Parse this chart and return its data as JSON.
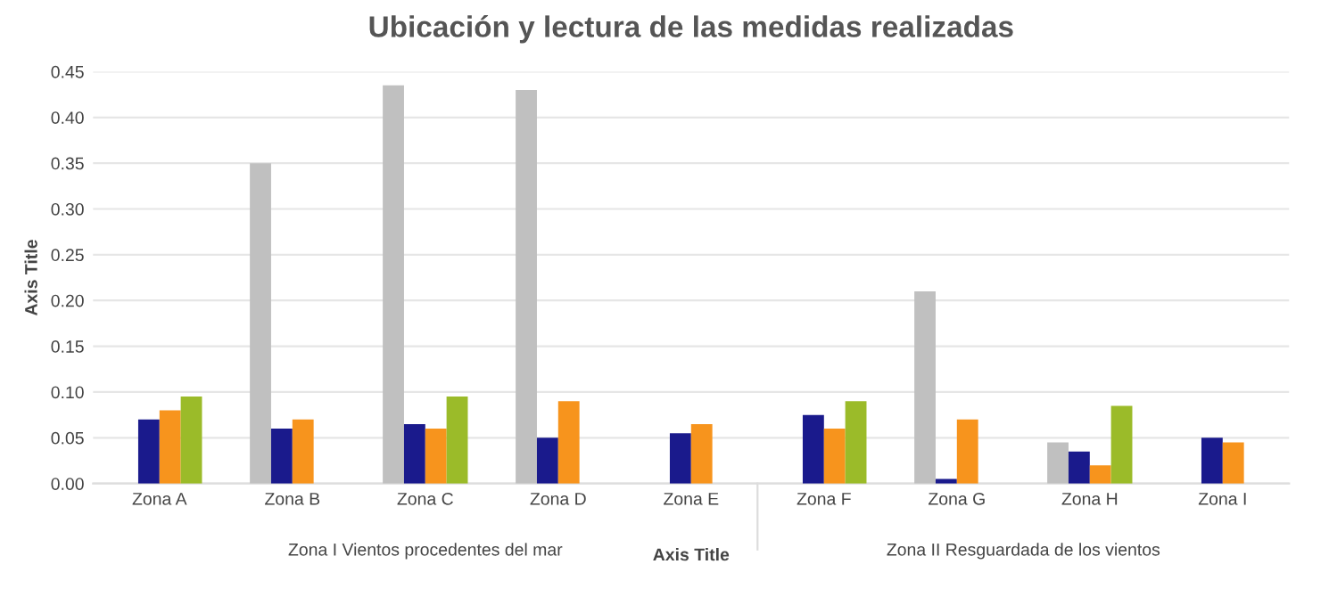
{
  "chart_data": {
    "type": "bar",
    "title": "Ubicación y lectura de las medidas realizadas",
    "xlabel": "Axis Title",
    "ylabel": "Axis Title",
    "categories": [
      "Zona A",
      "Zona B",
      "Zona C",
      "Zona D",
      "Zona E",
      "Zona F",
      "Zona G",
      "Zona H",
      "Zona I"
    ],
    "series": [
      {
        "color": "#c0c0c0",
        "values": [
          0,
          0.35,
          0.435,
          0.43,
          0,
          0,
          0.21,
          0.045,
          0
        ]
      },
      {
        "color": "#1a1a8c",
        "values": [
          0.07,
          0.06,
          0.065,
          0.05,
          0.055,
          0.075,
          0.005,
          0.035,
          0.05
        ]
      },
      {
        "color": "#f7941d",
        "values": [
          0.08,
          0.07,
          0.06,
          0.09,
          0.065,
          0.06,
          0.07,
          0.02,
          0.045
        ]
      },
      {
        "color": "#9bbb29",
        "values": [
          0.095,
          0,
          0.095,
          0,
          0,
          0.09,
          0,
          0.085,
          0
        ]
      }
    ],
    "ylim": [
      0,
      0.45
    ],
    "yticks": [
      {
        "value": 0,
        "label": "0.00"
      },
      {
        "value": 0.05,
        "label": "0.05"
      },
      {
        "value": 0.1,
        "label": "0.10"
      },
      {
        "value": 0.15,
        "label": "0.15"
      },
      {
        "value": 0.2,
        "label": "0.20"
      },
      {
        "value": 0.25,
        "label": "0.25"
      },
      {
        "value": 0.3,
        "label": "0.30"
      },
      {
        "value": 0.35,
        "label": "0.35"
      },
      {
        "value": 0.4,
        "label": "0.40"
      },
      {
        "value": 0.45,
        "label": "0.45"
      }
    ],
    "grid": "y",
    "annotations": [
      "Zona I Vientos procedentes del mar",
      "Zona II Resguardada de los vientos"
    ]
  }
}
